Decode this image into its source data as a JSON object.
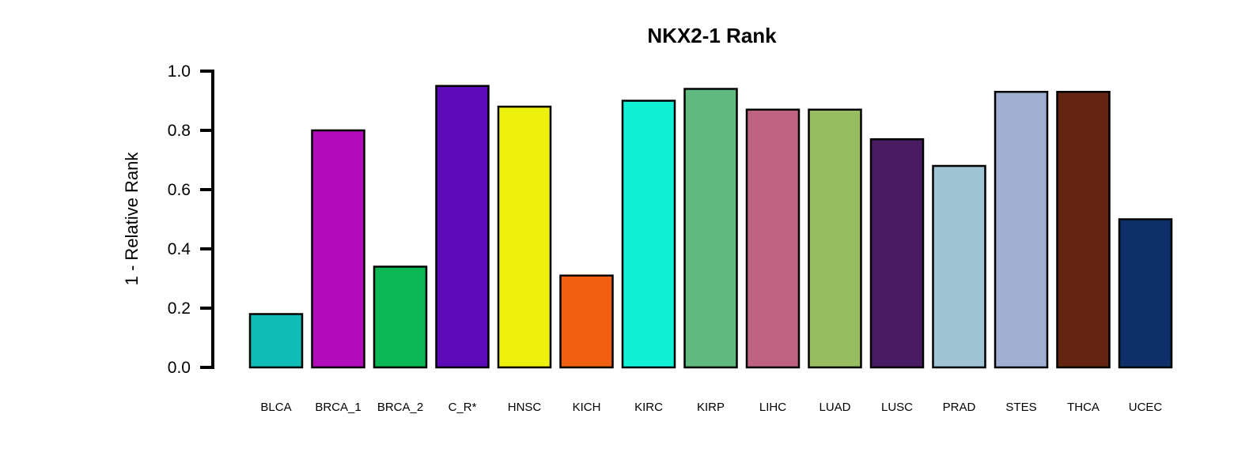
{
  "chart_data": {
    "type": "bar",
    "title": "NKX2-1 Rank",
    "xlabel": "",
    "ylabel": "1 - Relative Rank",
    "ylim": [
      0,
      1.0
    ],
    "yticks": [
      "0.0",
      "0.2",
      "0.4",
      "0.6",
      "0.8",
      "1.0"
    ],
    "categories": [
      "BLCA",
      "BRCA_1",
      "BRCA_2",
      "C_R*",
      "HNSC",
      "KICH",
      "KIRC",
      "KIRP",
      "LIHC",
      "LUAD",
      "LUSC",
      "PRAD",
      "STES",
      "THCA",
      "UCEC"
    ],
    "values": [
      0.18,
      0.8,
      0.34,
      0.95,
      0.88,
      0.31,
      0.9,
      0.94,
      0.87,
      0.87,
      0.77,
      0.68,
      0.93,
      0.93,
      0.5
    ],
    "colors": [
      "#0fbcb6",
      "#b20cbb",
      "#0bb654",
      "#5d0bb9",
      "#eef00e",
      "#f06010",
      "#0ff0d4",
      "#60b97f",
      "#bd6280",
      "#97bc62",
      "#481b62",
      "#a0c4d4",
      "#a0aed2",
      "#632512",
      "#0f2f68"
    ],
    "grid": false,
    "legend": "none"
  }
}
